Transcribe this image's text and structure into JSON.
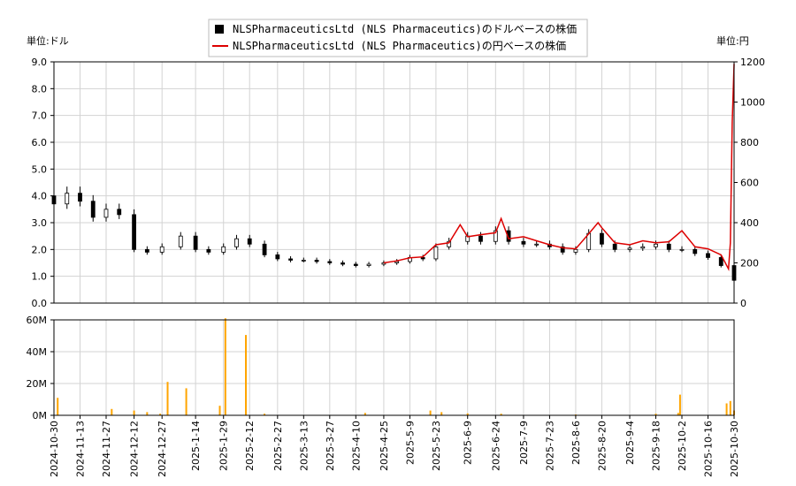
{
  "chart_data": [
    {
      "type": "candlestick+line",
      "legend": [
        {
          "label": "NLSPharmaceuticsLtd (NLS Pharmaceutics)のドルベースの株価",
          "color": "#000000",
          "marker": "square"
        },
        {
          "label": "NLSPharmaceuticsLtd (NLS Pharmaceutics)の円ベースの株価",
          "color": "#dd0000",
          "marker": "line"
        }
      ],
      "left_unit_label": "単位:ドル",
      "right_unit_label": "単位:円",
      "ylim_left": [
        0,
        9
      ],
      "ylim_right": [
        0,
        1200
      ],
      "left_ticks": [
        "9.0",
        "8.0",
        "7.0",
        "6.0",
        "5.0",
        "4.0",
        "3.0",
        "2.0",
        "1.0",
        "0.0"
      ],
      "right_ticks": [
        "1200",
        "1000",
        "800",
        "600",
        "400",
        "200",
        "0"
      ],
      "grid": true,
      "usd_series": {
        "name": "NLSPharmaceuticsLtd (NLS Pharmaceutics)のドルベースの株価",
        "x_date": [
          "2024-10-30",
          "2024-11-06",
          "2024-11-13",
          "2024-11-20",
          "2024-11-27",
          "2024-12-04",
          "2024-12-12",
          "2024-12-19",
          "2024-12-27",
          "2025-01-06",
          "2025-01-14",
          "2025-01-21",
          "2025-01-29",
          "2025-02-05",
          "2025-02-12",
          "2025-02-20",
          "2025-02-27",
          "2025-03-06",
          "2025-03-13",
          "2025-03-20",
          "2025-03-27",
          "2025-04-03",
          "2025-04-10",
          "2025-04-17",
          "2025-04-25",
          "2025-05-02",
          "2025-05-09",
          "2025-05-16",
          "2025-05-23",
          "2025-05-30",
          "2025-06-09",
          "2025-06-16",
          "2025-06-24",
          "2025-07-01",
          "2025-07-09",
          "2025-07-16",
          "2025-07-23",
          "2025-07-30",
          "2025-08-06",
          "2025-08-13",
          "2025-08-20",
          "2025-08-27",
          "2025-09-04",
          "2025-09-11",
          "2025-09-18",
          "2025-09-25",
          "2025-10-02",
          "2025-10-09",
          "2025-10-16",
          "2025-10-23",
          "2025-10-30"
        ],
        "close": [
          3.7,
          4.1,
          3.8,
          3.2,
          3.5,
          3.3,
          2.0,
          1.9,
          2.1,
          2.5,
          2.0,
          1.9,
          2.1,
          2.4,
          2.2,
          1.8,
          1.65,
          1.6,
          1.6,
          1.55,
          1.5,
          1.45,
          1.4,
          1.45,
          1.5,
          1.55,
          1.7,
          1.65,
          2.1,
          2.3,
          2.5,
          2.3,
          2.7,
          2.3,
          2.2,
          2.2,
          2.1,
          1.9,
          2.0,
          2.6,
          2.2,
          2.0,
          2.05,
          2.1,
          2.2,
          2.0,
          2.0,
          1.85,
          1.7,
          1.4,
          0.85
        ]
      },
      "jpy_series": {
        "name": "NLSPharmaceuticsLtd (NLS Pharmaceutics)の円ベースの株価",
        "x_date": [
          "2025-04-25",
          "2025-05-02",
          "2025-05-09",
          "2025-05-16",
          "2025-05-23",
          "2025-05-30",
          "2025-06-05",
          "2025-06-09",
          "2025-06-16",
          "2025-06-24",
          "2025-06-27",
          "2025-07-01",
          "2025-07-09",
          "2025-07-16",
          "2025-07-23",
          "2025-07-30",
          "2025-08-06",
          "2025-08-13",
          "2025-08-18",
          "2025-08-20",
          "2025-08-27",
          "2025-09-04",
          "2025-09-11",
          "2025-09-18",
          "2025-09-25",
          "2025-10-02",
          "2025-10-09",
          "2025-10-16",
          "2025-10-23",
          "2025-10-27",
          "2025-10-28",
          "2025-10-29",
          "2025-10-30"
        ],
        "yen": [
          200,
          210,
          225,
          230,
          290,
          300,
          390,
          330,
          340,
          350,
          420,
          320,
          330,
          310,
          290,
          275,
          270,
          345,
          400,
          375,
          300,
          290,
          310,
          300,
          305,
          360,
          280,
          270,
          240,
          170,
          300,
          900,
          1190
        ]
      },
      "volume": {
        "ylim": [
          0,
          60000000
        ],
        "ticks": [
          "60M",
          "40M",
          "20M",
          "0M"
        ],
        "x_date": [
          "2024-11-01",
          "2024-11-30",
          "2024-12-12",
          "2024-12-19",
          "2024-12-26",
          "2024-12-30",
          "2025-01-09",
          "2025-01-27",
          "2025-01-30",
          "2025-02-10",
          "2025-02-20",
          "2025-04-15",
          "2025-05-20",
          "2025-05-26",
          "2025-06-09",
          "2025-06-27",
          "2025-08-06",
          "2025-09-18",
          "2025-09-30",
          "2025-10-01",
          "2025-10-26",
          "2025-10-28",
          "2025-10-30"
        ],
        "values": [
          11000000,
          4000000,
          3000000,
          2000000,
          1000000,
          21000000,
          17000000,
          6000000,
          61000000,
          50500000,
          1000000,
          1500000,
          3000000,
          2000000,
          1200000,
          1000000,
          500000,
          1000000,
          1500000,
          13000000,
          7500000,
          9000000,
          3000000
        ]
      },
      "x_tick_labels": [
        "2024-10-30",
        "2024-11-13",
        "2024-11-27",
        "2024-12-12",
        "2024-12-27",
        "2025-1-14",
        "2025-1-29",
        "2025-2-12",
        "2025-2-27",
        "2025-3-13",
        "2025-3-27",
        "2025-4-10",
        "2025-4-25",
        "2025-5-9",
        "2025-5-23",
        "2025-6-9",
        "2025-6-24",
        "2025-7-9",
        "2025-7-23",
        "2025-8-6",
        "2025-8-20",
        "2025-9-4",
        "2025-9-18",
        "2025-10-2",
        "2025-10-16",
        "2025-10-30"
      ],
      "x_tick_dates": [
        "2024-10-30",
        "2024-11-13",
        "2024-11-27",
        "2024-12-12",
        "2024-12-27",
        "2025-01-14",
        "2025-01-29",
        "2025-02-12",
        "2025-02-27",
        "2025-03-13",
        "2025-03-27",
        "2025-04-10",
        "2025-04-25",
        "2025-05-09",
        "2025-05-23",
        "2025-06-09",
        "2025-06-24",
        "2025-07-09",
        "2025-07-23",
        "2025-08-06",
        "2025-08-20",
        "2025-09-04",
        "2025-09-18",
        "2025-10-02",
        "2025-10-16",
        "2025-10-30"
      ],
      "colors": {
        "usd": "#000000",
        "jpy": "#dd0000",
        "volume": "#ffa500",
        "grid": "#d3d3d3"
      }
    }
  ]
}
